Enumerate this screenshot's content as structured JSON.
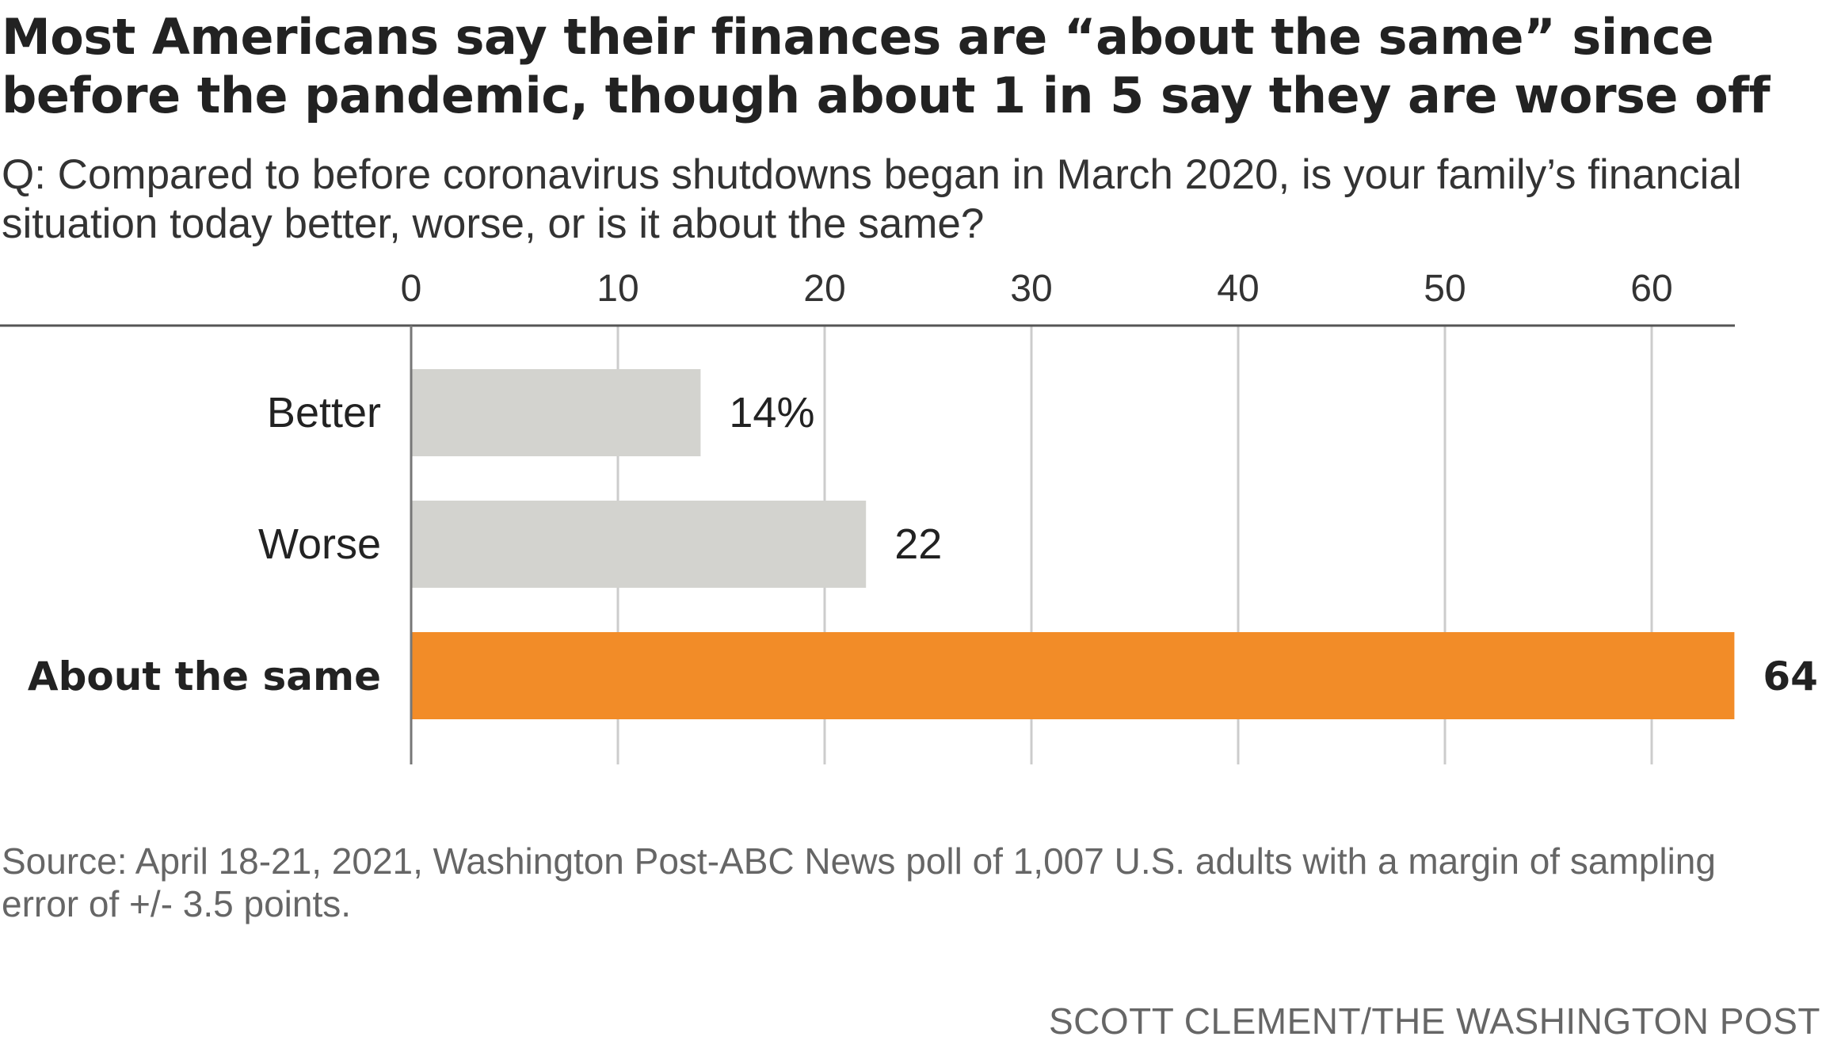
{
  "title": "Most Americans say their finances are “about the same” since before the pandemic, though about 1 in 5 say they are worse off",
  "subtitle": "Q: Compared to before coronavirus shutdowns began in March 2020, is your family’s financial situation today better, worse, or is it about the same?",
  "source": "Source: April 18-21, 2021, Washington Post-ABC News poll of 1,007 U.S. adults with a margin of sampling error of +/- 3.5 points.",
  "credit": "SCOTT CLEMENT/THE WASHINGTON POST",
  "colors": {
    "highlight": "#f28c28",
    "muted": "#d3d3cf",
    "gridline": "#cccccc",
    "axis": "#555555",
    "text": "#222222"
  },
  "chart_data": {
    "type": "bar",
    "orientation": "horizontal",
    "categories": [
      "Better",
      "Worse",
      "About the same"
    ],
    "values": [
      14,
      22,
      64
    ],
    "data_labels": [
      "14%",
      "22",
      "64"
    ],
    "highlighted": [
      false,
      false,
      true
    ],
    "xlim": [
      0,
      64
    ],
    "xticks": [
      0,
      10,
      20,
      30,
      40,
      50,
      60
    ],
    "xtick_labels": [
      "0",
      "10",
      "20",
      "30",
      "40",
      "50",
      "60"
    ],
    "grid": true,
    "xaxis_position": "top"
  }
}
